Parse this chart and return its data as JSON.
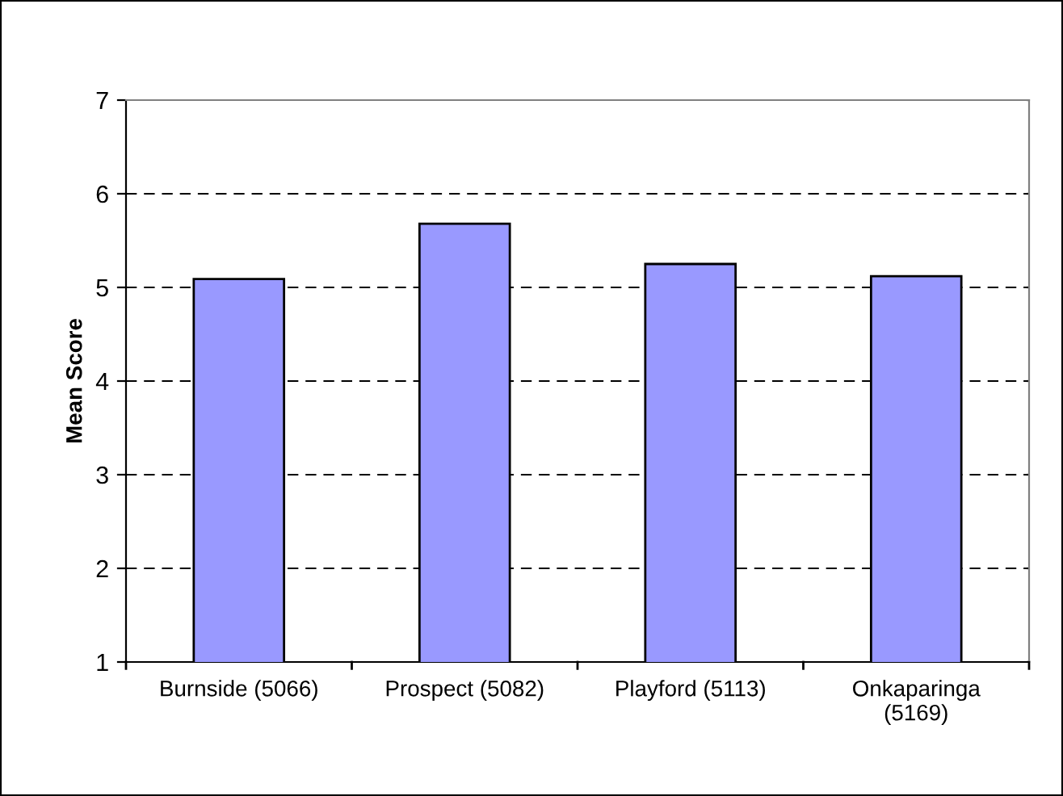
{
  "chart_data": {
    "type": "bar",
    "ylabel": "Mean Score",
    "categories": [
      "Burnside (5066)",
      "Prospect (5082)",
      "Playford (5113)",
      "Onkaparinga\n(5169)"
    ],
    "values": [
      5.09,
      5.68,
      5.25,
      5.12
    ],
    "color": "#9999ff",
    "ylim": [
      1,
      7
    ],
    "yticks": [
      1,
      2,
      3,
      4,
      5,
      6,
      7
    ],
    "grid": "y",
    "line_style": "dashed"
  }
}
